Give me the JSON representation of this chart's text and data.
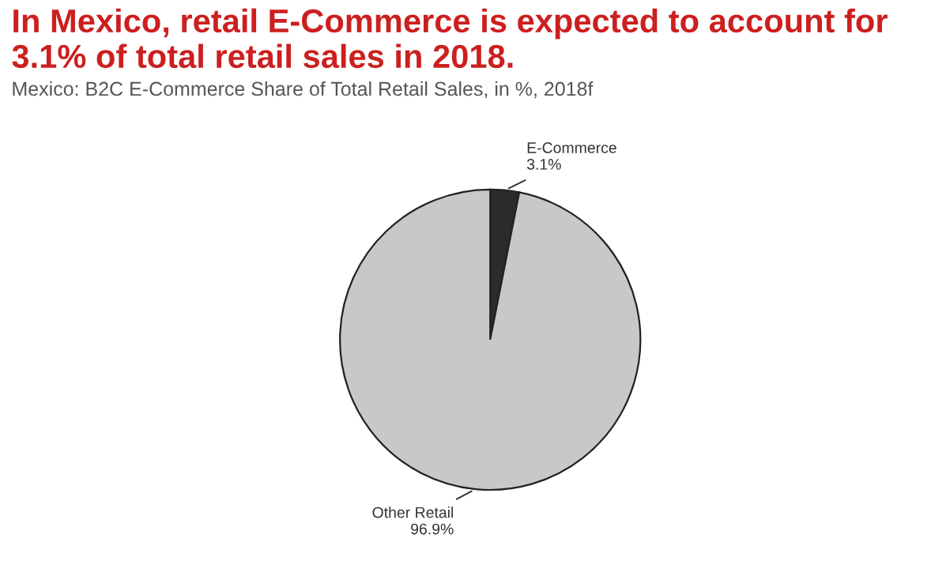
{
  "chart_data": {
    "type": "pie",
    "title": "In Mexico, retail E-Commerce is expected to account for 3.1% of total retail sales in 2018.",
    "subtitle": "Mexico: B2C E-Commerce Share of Total Retail Sales, in %, 2018f",
    "categories": [
      "E-Commerce",
      "Other Retail"
    ],
    "values": [
      3.1,
      96.9
    ],
    "colors": [
      "#2b2b2b",
      "#c9c7c9"
    ],
    "value_labels": [
      "3.1%",
      "96.9%"
    ]
  }
}
